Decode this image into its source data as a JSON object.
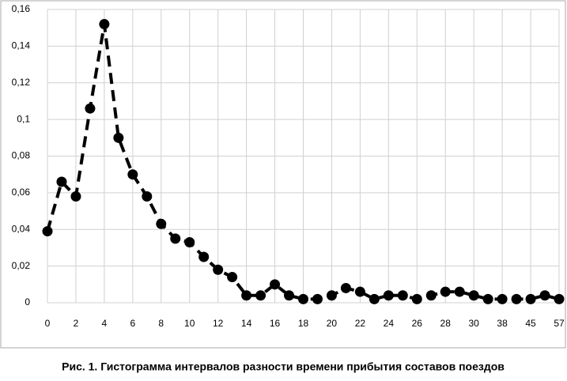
{
  "chart_data": {
    "type": "line",
    "caption": "Рис. 1. Гистограмма интервалов разности времени прибытия составов поездов",
    "categories": [
      "0",
      null,
      "2",
      null,
      "4",
      null,
      "6",
      null,
      "8",
      null,
      "10",
      null,
      "12",
      null,
      "14",
      null,
      "16",
      null,
      "18",
      null,
      "20",
      null,
      "22",
      null,
      "24",
      null,
      "26",
      null,
      "28",
      null,
      "30",
      null,
      "38",
      null,
      "45",
      null,
      "57"
    ],
    "series": [
      {
        "color": "#000000",
        "values": [
          0.039,
          0.066,
          0.058,
          0.106,
          0.152,
          0.09,
          0.07,
          0.058,
          0.043,
          0.035,
          0.033,
          0.025,
          0.018,
          0.014,
          0.004,
          0.004,
          0.01,
          0.004,
          0.002,
          0.002,
          0.004,
          0.008,
          0.006,
          0.002,
          0.004,
          0.004,
          0.002,
          0.004,
          0.006,
          0.006,
          0.004,
          0.002,
          0.002,
          0.002,
          0.002,
          0.004,
          0.002
        ]
      }
    ],
    "ylim": [
      0,
      0.16
    ],
    "yticks": [
      0,
      {
        "value": 0.02,
        "label": "0,02"
      },
      {
        "value": 0.04,
        "label": "0,04"
      },
      {
        "value": 0.06,
        "label": "0,06"
      },
      {
        "value": 0.08,
        "label": "0,08"
      },
      {
        "value": 0.1,
        "label": "0,1"
      },
      {
        "value": 0.12,
        "label": "0,12"
      },
      {
        "value": 0.14,
        "label": "0,14"
      },
      {
        "value": 0.16,
        "label": "0,16"
      }
    ],
    "grid": true
  }
}
